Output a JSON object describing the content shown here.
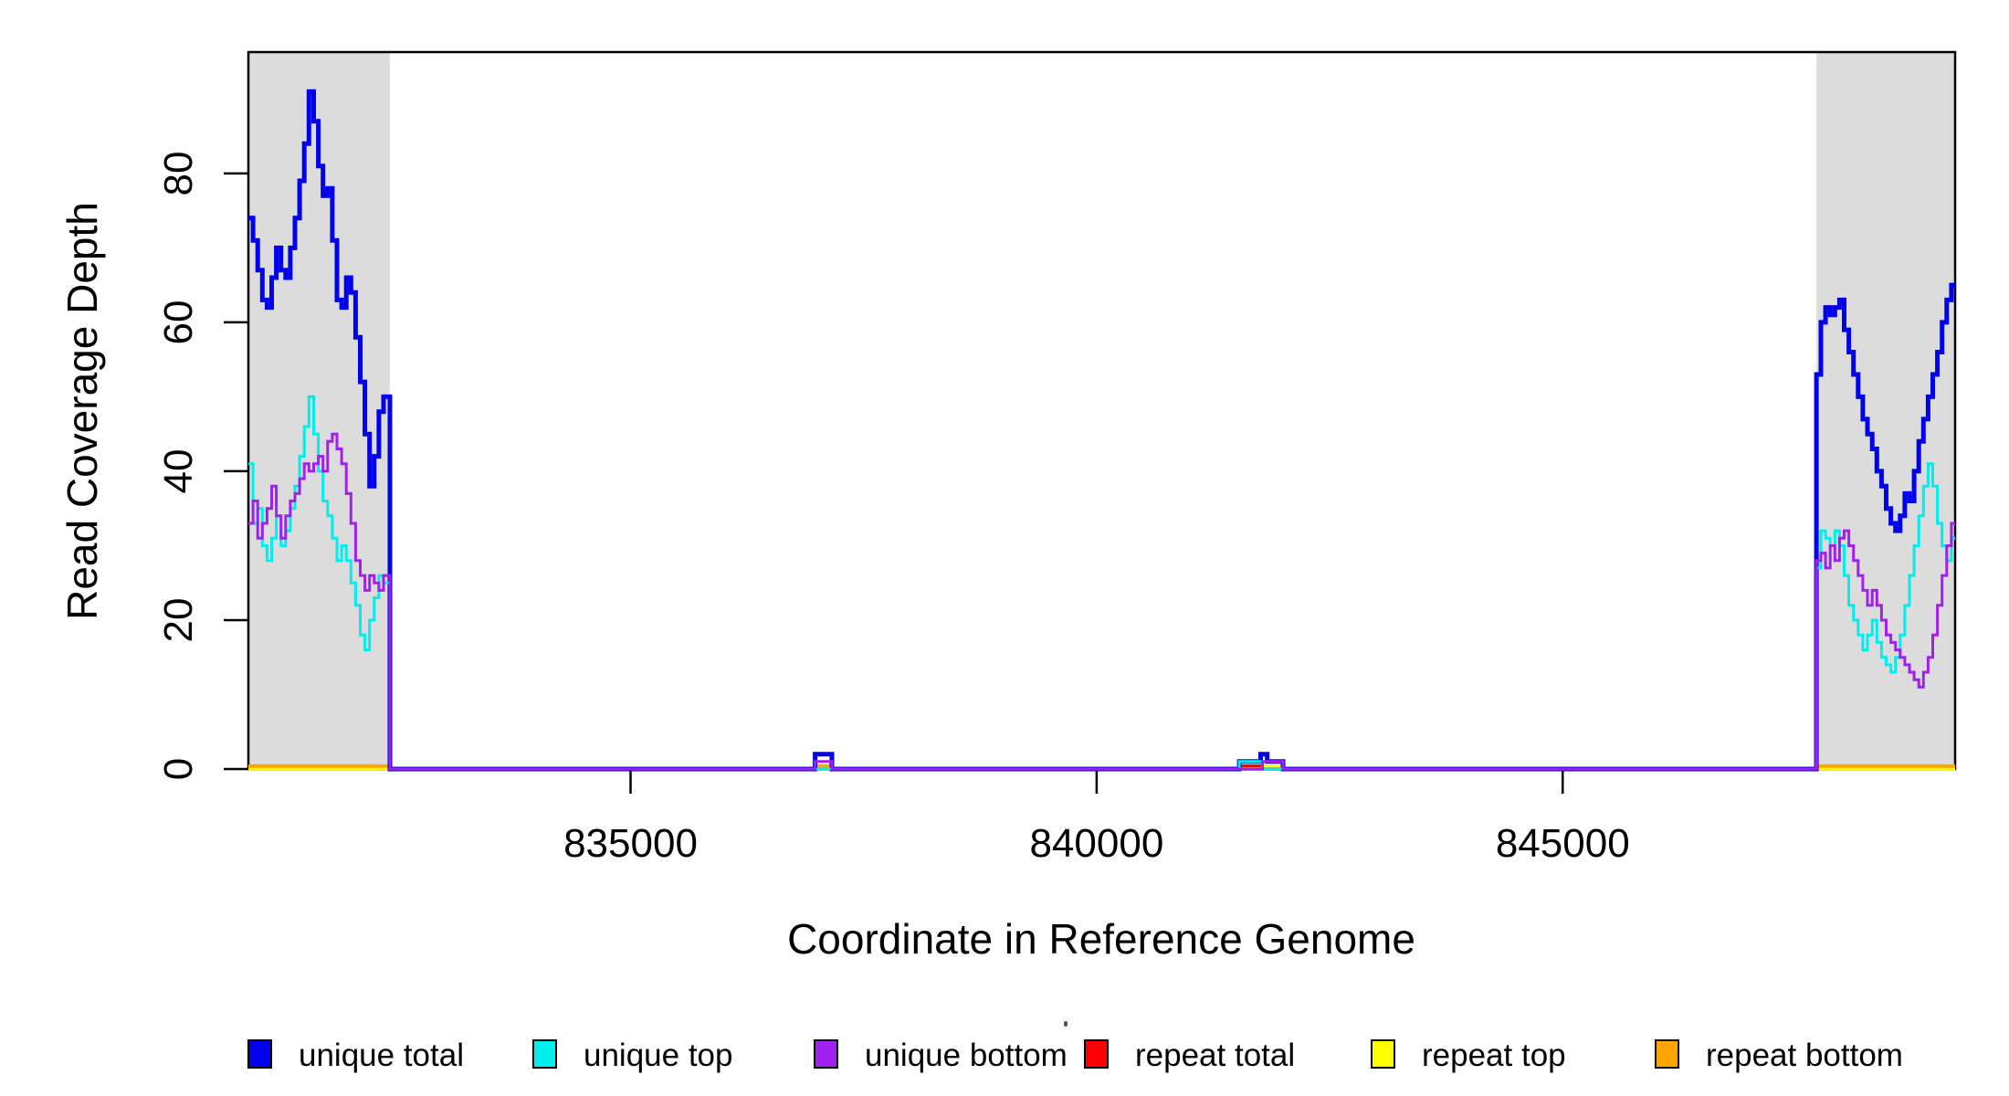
{
  "axes": {
    "x_title": "Coordinate in Reference Genome",
    "y_title": "Read Coverage Depth",
    "x_tick_labels": [
      "835000",
      "840000",
      "845000"
    ],
    "y_tick_labels": [
      "0",
      "20",
      "40",
      "60",
      "80"
    ]
  },
  "legend": {
    "items": [
      {
        "label": "unique total",
        "color": "#0000EE"
      },
      {
        "label": "unique top",
        "color": "#00EEEE"
      },
      {
        "label": "unique bottom",
        "color": "#A020F0"
      },
      {
        "label": "repeat total",
        "color": "#FF0000"
      },
      {
        "label": "repeat top",
        "color": "#FFFF00"
      },
      {
        "label": "repeat bottom",
        "color": "#FFA500"
      }
    ]
  },
  "chart_data": {
    "type": "line",
    "step": true,
    "title": "",
    "xlabel": "Coordinate in Reference Genome",
    "ylabel": "Read Coverage Depth",
    "xlim": [
      830900,
      849210
    ],
    "ylim": [
      0,
      96.3
    ],
    "x_ticks": [
      835000,
      840000,
      845000
    ],
    "y_ticks": [
      0,
      20,
      40,
      60,
      80
    ],
    "grid": false,
    "legend_position": "bottom",
    "background_color": "#FFFFFF",
    "highlight_color": "#DCDCDC",
    "highlight_regions": [
      {
        "x0": 830900,
        "x1": 832418
      },
      {
        "x0": 847722,
        "x1": 849210
      }
    ],
    "series": [
      {
        "name": "repeat total",
        "color": "#FF0000",
        "width": 3.5,
        "points": [
          [
            830900,
            0
          ],
          [
            841540,
            0.4
          ],
          [
            841780,
            0
          ]
        ]
      },
      {
        "name": "repeat top",
        "color": "#FFFF00",
        "width": 3.5,
        "points": [
          [
            830900,
            0
          ],
          [
            841780,
            0.4
          ],
          [
            842000,
            0
          ]
        ]
      },
      {
        "name": "repeat bottom",
        "color": "#FFA500",
        "width": 4,
        "points": [
          [
            830900,
            0.4
          ],
          [
            832420,
            0
          ],
          [
            836990,
            0.4
          ],
          [
            837150,
            0
          ],
          [
            847722,
            0.4
          ]
        ]
      },
      {
        "name": "unique total",
        "color": "#0000EE",
        "width": 5,
        "points": [
          [
            830900,
            74
          ],
          [
            830950,
            71
          ],
          [
            831000,
            67
          ],
          [
            831050,
            63
          ],
          [
            831100,
            62
          ],
          [
            831150,
            66
          ],
          [
            831200,
            70
          ],
          [
            831250,
            67
          ],
          [
            831300,
            66
          ],
          [
            831350,
            70
          ],
          [
            831400,
            74
          ],
          [
            831450,
            79
          ],
          [
            831500,
            84
          ],
          [
            831550,
            91
          ],
          [
            831600,
            87
          ],
          [
            831650,
            81
          ],
          [
            831700,
            77
          ],
          [
            831750,
            78
          ],
          [
            831800,
            71
          ],
          [
            831850,
            63
          ],
          [
            831900,
            62
          ],
          [
            831950,
            66
          ],
          [
            832000,
            64
          ],
          [
            832050,
            58
          ],
          [
            832100,
            52
          ],
          [
            832150,
            45
          ],
          [
            832200,
            38
          ],
          [
            832250,
            42
          ],
          [
            832300,
            48
          ],
          [
            832350,
            50
          ],
          [
            832418,
            0
          ],
          [
            836980,
            2
          ],
          [
            837160,
            0
          ],
          [
            841530,
            1
          ],
          [
            841760,
            2
          ],
          [
            841830,
            1
          ],
          [
            842000,
            0
          ],
          [
            847722,
            53
          ],
          [
            847770,
            60
          ],
          [
            847820,
            62
          ],
          [
            847870,
            61
          ],
          [
            847920,
            62
          ],
          [
            847970,
            63
          ],
          [
            848020,
            59
          ],
          [
            848070,
            56
          ],
          [
            848120,
            53
          ],
          [
            848170,
            50
          ],
          [
            848220,
            47
          ],
          [
            848270,
            45
          ],
          [
            848320,
            43
          ],
          [
            848370,
            40
          ],
          [
            848420,
            38
          ],
          [
            848470,
            35
          ],
          [
            848520,
            33
          ],
          [
            848570,
            32
          ],
          [
            848620,
            34
          ],
          [
            848670,
            37
          ],
          [
            848720,
            36
          ],
          [
            848770,
            40
          ],
          [
            848820,
            44
          ],
          [
            848870,
            47
          ],
          [
            848920,
            50
          ],
          [
            848970,
            53
          ],
          [
            849020,
            56
          ],
          [
            849070,
            60
          ],
          [
            849120,
            63
          ],
          [
            849170,
            65
          ]
        ]
      },
      {
        "name": "unique top",
        "color": "#00EEEE",
        "width": 3,
        "points": [
          [
            830900,
            41
          ],
          [
            830950,
            33
          ],
          [
            831000,
            35
          ],
          [
            831050,
            30
          ],
          [
            831100,
            28
          ],
          [
            831150,
            31
          ],
          [
            831200,
            34
          ],
          [
            831250,
            30
          ],
          [
            831300,
            32
          ],
          [
            831350,
            35
          ],
          [
            831400,
            38
          ],
          [
            831450,
            42
          ],
          [
            831500,
            46
          ],
          [
            831550,
            50
          ],
          [
            831600,
            45
          ],
          [
            831650,
            40
          ],
          [
            831700,
            36
          ],
          [
            831750,
            34
          ],
          [
            831800,
            31
          ],
          [
            831850,
            28
          ],
          [
            831900,
            30
          ],
          [
            831950,
            28
          ],
          [
            832000,
            25
          ],
          [
            832050,
            22
          ],
          [
            832100,
            18
          ],
          [
            832150,
            16
          ],
          [
            832200,
            20
          ],
          [
            832250,
            23
          ],
          [
            832300,
            26
          ],
          [
            832350,
            25
          ],
          [
            832418,
            0
          ],
          [
            841530,
            1
          ],
          [
            841780,
            0
          ],
          [
            847722,
            27
          ],
          [
            847770,
            32
          ],
          [
            847820,
            31
          ],
          [
            847870,
            30
          ],
          [
            847920,
            32
          ],
          [
            847970,
            30
          ],
          [
            848020,
            26
          ],
          [
            848070,
            22
          ],
          [
            848120,
            20
          ],
          [
            848170,
            18
          ],
          [
            848220,
            16
          ],
          [
            848270,
            18
          ],
          [
            848320,
            20
          ],
          [
            848370,
            17
          ],
          [
            848420,
            15
          ],
          [
            848470,
            14
          ],
          [
            848520,
            13
          ],
          [
            848570,
            15
          ],
          [
            848620,
            18
          ],
          [
            848670,
            22
          ],
          [
            848720,
            26
          ],
          [
            848770,
            30
          ],
          [
            848820,
            34
          ],
          [
            848870,
            38
          ],
          [
            848920,
            41
          ],
          [
            848970,
            38
          ],
          [
            849020,
            33
          ],
          [
            849070,
            30
          ],
          [
            849120,
            28
          ],
          [
            849170,
            31
          ]
        ]
      },
      {
        "name": "unique bottom",
        "color": "#A020F0",
        "width": 3,
        "points": [
          [
            830900,
            33
          ],
          [
            830950,
            36
          ],
          [
            831000,
            31
          ],
          [
            831050,
            33
          ],
          [
            831100,
            35
          ],
          [
            831150,
            38
          ],
          [
            831200,
            34
          ],
          [
            831250,
            31
          ],
          [
            831300,
            34
          ],
          [
            831350,
            36
          ],
          [
            831400,
            37
          ],
          [
            831450,
            39
          ],
          [
            831500,
            41
          ],
          [
            831550,
            40
          ],
          [
            831600,
            41
          ],
          [
            831650,
            42
          ],
          [
            831700,
            40
          ],
          [
            831750,
            44
          ],
          [
            831800,
            45
          ],
          [
            831850,
            43
          ],
          [
            831900,
            41
          ],
          [
            831950,
            37
          ],
          [
            832000,
            33
          ],
          [
            832050,
            28
          ],
          [
            832100,
            26
          ],
          [
            832150,
            24
          ],
          [
            832200,
            26
          ],
          [
            832250,
            25
          ],
          [
            832300,
            24
          ],
          [
            832350,
            26
          ],
          [
            832418,
            0
          ],
          [
            836980,
            1
          ],
          [
            837160,
            0
          ],
          [
            841780,
            1
          ],
          [
            842000,
            0
          ],
          [
            847722,
            28
          ],
          [
            847770,
            29
          ],
          [
            847820,
            27
          ],
          [
            847870,
            30
          ],
          [
            847920,
            28
          ],
          [
            847970,
            31
          ],
          [
            848020,
            32
          ],
          [
            848070,
            30
          ],
          [
            848120,
            28
          ],
          [
            848170,
            26
          ],
          [
            848220,
            24
          ],
          [
            848270,
            22
          ],
          [
            848320,
            24
          ],
          [
            848370,
            22
          ],
          [
            848420,
            20
          ],
          [
            848470,
            18
          ],
          [
            848520,
            17
          ],
          [
            848570,
            16
          ],
          [
            848620,
            15
          ],
          [
            848670,
            14
          ],
          [
            848720,
            13
          ],
          [
            848770,
            12
          ],
          [
            848820,
            11
          ],
          [
            848870,
            13
          ],
          [
            848920,
            15
          ],
          [
            848970,
            18
          ],
          [
            849020,
            22
          ],
          [
            849070,
            26
          ],
          [
            849120,
            30
          ],
          [
            849170,
            33
          ]
        ]
      }
    ]
  }
}
